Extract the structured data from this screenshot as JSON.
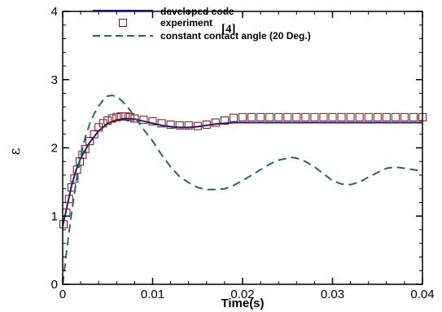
{
  "chart_data": {
    "type": "line",
    "xlabel": "Time(s)",
    "ylabel": "ε",
    "xlim": [
      0,
      0.04
    ],
    "ylim": [
      0,
      4
    ],
    "xticks": [
      0,
      0.01,
      0.02,
      0.03,
      0.04
    ],
    "xtick_labels": [
      "0",
      "0.01",
      "0.02",
      "0.03",
      "0.04"
    ],
    "yticks": [
      0,
      1,
      2,
      3,
      4
    ],
    "ytick_labels": [
      "0",
      "1",
      "2",
      "3",
      "4"
    ],
    "legend_position": "top-left",
    "grid": false,
    "series": [
      {
        "name": "developed code",
        "style": "solid",
        "color": "#1a1a8c",
        "x": [
          0,
          0.0005,
          0.001,
          0.0015,
          0.002,
          0.003,
          0.004,
          0.005,
          0.006,
          0.007,
          0.008,
          0.009,
          0.01,
          0.011,
          0.012,
          0.013,
          0.014,
          0.015,
          0.016,
          0.017,
          0.018,
          0.019,
          0.02,
          0.025,
          0.03,
          0.035,
          0.04
        ],
        "y": [
          0.85,
          1.15,
          1.45,
          1.68,
          1.85,
          2.08,
          2.25,
          2.36,
          2.41,
          2.43,
          2.42,
          2.39,
          2.36,
          2.33,
          2.31,
          2.3,
          2.3,
          2.31,
          2.33,
          2.35,
          2.36,
          2.37,
          2.37,
          2.37,
          2.37,
          2.37,
          2.37
        ]
      },
      {
        "name": "experiment",
        "name_ref": "[4]",
        "style": "markers",
        "marker": "square",
        "color": "#7a1010",
        "x": [
          0.0001,
          0.0004,
          0.0007,
          0.001,
          0.0013,
          0.0016,
          0.0019,
          0.0022,
          0.0025,
          0.003,
          0.0035,
          0.004,
          0.0045,
          0.005,
          0.0055,
          0.006,
          0.0065,
          0.007,
          0.0075,
          0.008,
          0.009,
          0.01,
          0.011,
          0.012,
          0.013,
          0.014,
          0.015,
          0.016,
          0.017,
          0.018,
          0.019,
          0.02,
          0.021,
          0.022,
          0.023,
          0.024,
          0.025,
          0.026,
          0.027,
          0.028,
          0.029,
          0.03,
          0.031,
          0.032,
          0.033,
          0.034,
          0.035,
          0.036,
          0.037,
          0.038,
          0.039,
          0.04
        ],
        "y": [
          0.88,
          1.05,
          1.25,
          1.42,
          1.55,
          1.68,
          1.8,
          1.9,
          1.98,
          2.1,
          2.2,
          2.3,
          2.36,
          2.4,
          2.43,
          2.45,
          2.46,
          2.46,
          2.45,
          2.43,
          2.41,
          2.39,
          2.36,
          2.34,
          2.33,
          2.33,
          2.32,
          2.34,
          2.37,
          2.4,
          2.44,
          2.45,
          2.45,
          2.45,
          2.45,
          2.45,
          2.45,
          2.45,
          2.45,
          2.45,
          2.45,
          2.45,
          2.45,
          2.45,
          2.45,
          2.45,
          2.45,
          2.45,
          2.45,
          2.45,
          2.45,
          2.45
        ]
      },
      {
        "name": "constant contact angle (20 Deg.)",
        "style": "dashed",
        "color": "#1f6b6b",
        "x": [
          0,
          0.0005,
          0.001,
          0.0015,
          0.002,
          0.0025,
          0.003,
          0.0035,
          0.004,
          0.0045,
          0.005,
          0.0055,
          0.006,
          0.0065,
          0.007,
          0.0075,
          0.008,
          0.009,
          0.01,
          0.011,
          0.012,
          0.013,
          0.014,
          0.015,
          0.016,
          0.017,
          0.018,
          0.019,
          0.02,
          0.021,
          0.022,
          0.023,
          0.024,
          0.025,
          0.0255,
          0.026,
          0.027,
          0.028,
          0.029,
          0.03,
          0.031,
          0.032,
          0.033,
          0.034,
          0.035,
          0.036,
          0.037,
          0.038,
          0.039,
          0.04
        ],
        "y": [
          0.0,
          0.55,
          1.05,
          1.5,
          1.88,
          2.15,
          2.35,
          2.5,
          2.61,
          2.7,
          2.76,
          2.77,
          2.75,
          2.7,
          2.63,
          2.55,
          2.45,
          2.27,
          2.1,
          1.9,
          1.72,
          1.58,
          1.49,
          1.42,
          1.39,
          1.39,
          1.4,
          1.45,
          1.52,
          1.6,
          1.68,
          1.76,
          1.82,
          1.85,
          1.86,
          1.85,
          1.8,
          1.72,
          1.62,
          1.52,
          1.47,
          1.46,
          1.5,
          1.57,
          1.64,
          1.7,
          1.72,
          1.7,
          1.68,
          1.66
        ]
      }
    ]
  }
}
